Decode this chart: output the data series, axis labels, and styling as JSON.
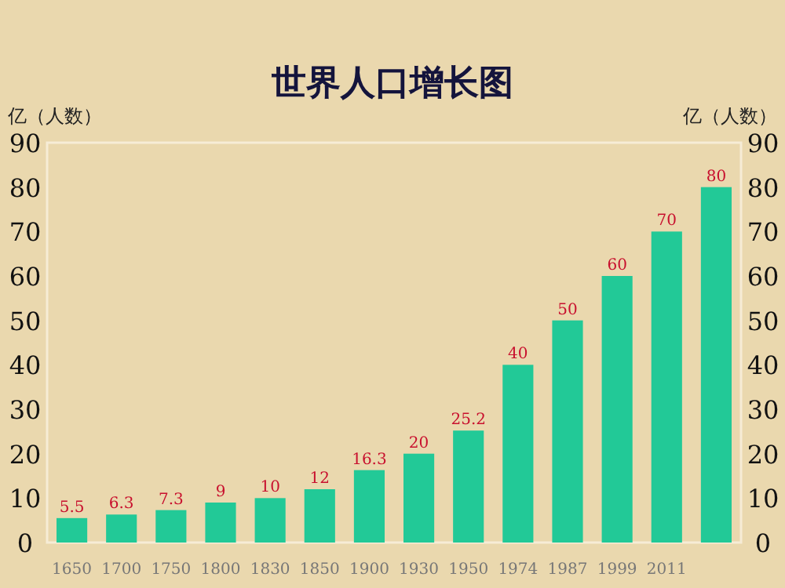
{
  "chart_data": {
    "type": "bar",
    "title": "世界人口增长图",
    "ylabel": "亿（人数）",
    "y2label": "亿（人数）",
    "categories": [
      "1650",
      "1700",
      "1750",
      "1800",
      "1830",
      "1850",
      "1900",
      "1930",
      "1950",
      "1974",
      "1987",
      "1999",
      "2011",
      null
    ],
    "values": [
      5.5,
      6.3,
      7.3,
      9,
      10,
      12,
      16.3,
      20,
      25.2,
      40,
      50,
      60,
      70,
      80
    ],
    "color": "#22c997",
    "data_labels": true,
    "ylim": [
      0,
      90
    ],
    "yticks": [
      0,
      10,
      20,
      30,
      40,
      50,
      60,
      70,
      80,
      90
    ],
    "y2lim": [
      0,
      90
    ],
    "y2ticks": [
      0,
      10,
      20,
      30,
      40,
      50,
      60,
      70,
      80,
      90
    ]
  }
}
